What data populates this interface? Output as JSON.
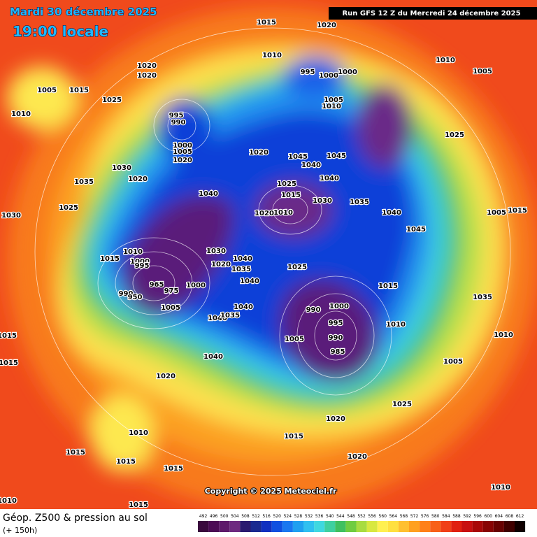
{
  "header": {
    "date": "Mardi 30 décembre 2025",
    "time": "19:00 locale",
    "run": "Run GFS 12 Z du Mercredi 24 décembre 2025"
  },
  "map": {
    "copyright": "Copyright © 2025 Meteociel.fr",
    "pressure_labels": [
      1015,
      1020,
      1005,
      1015,
      1010,
      1025,
      1020,
      1020,
      1010,
      1010,
      1005,
      995,
      990,
      1000,
      1005,
      1020,
      995,
      1000,
      1000,
      1005,
      1010,
      1025,
      1030,
      1020,
      1035,
      1025,
      1030,
      1020,
      1045,
      1040,
      1045,
      1040,
      1025,
      1015,
      1010,
      1020,
      1030,
      1035,
      1040,
      1040,
      1005,
      1015,
      1045,
      1010,
      1015,
      1000,
      995,
      1030,
      1020,
      1040,
      1035,
      1040,
      1025,
      965,
      975,
      1000,
      990,
      950,
      1005,
      1040,
      1015,
      1035,
      990,
      1000,
      995,
      990,
      985,
      1005,
      1010,
      1010,
      1015,
      1040,
      1015,
      1005,
      1020,
      1025,
      1020,
      1010,
      1015,
      1015,
      1015,
      1015,
      1020,
      1010,
      1010,
      1015,
      1040,
      1035
    ]
  },
  "footer": {
    "title": "Géop. Z500 & pression au sol",
    "lead": "(+ 150h)",
    "colorbar": {
      "values": [
        492,
        496,
        500,
        504,
        508,
        512,
        516,
        520,
        524,
        528,
        532,
        536,
        540,
        544,
        548,
        552,
        556,
        560,
        564,
        568,
        572,
        576,
        580,
        584,
        588,
        592,
        596,
        600,
        604,
        608,
        612
      ],
      "colors": [
        "#3a0a3e",
        "#4c0c55",
        "#5e1a6a",
        "#6e2a80",
        "#2a1a70",
        "#1a2a90",
        "#1030c0",
        "#1050e0",
        "#1a78f0",
        "#20a0f0",
        "#30c0f0",
        "#40d8e0",
        "#40d0a0",
        "#40c060",
        "#70cc40",
        "#a8dc40",
        "#d8e840",
        "#fff050",
        "#ffe040",
        "#ffc030",
        "#ffa020",
        "#ff8018",
        "#f86018",
        "#f04018",
        "#e02010",
        "#c81010",
        "#a80808",
        "#880404",
        "#680202",
        "#400000",
        "#100000"
      ]
    }
  }
}
